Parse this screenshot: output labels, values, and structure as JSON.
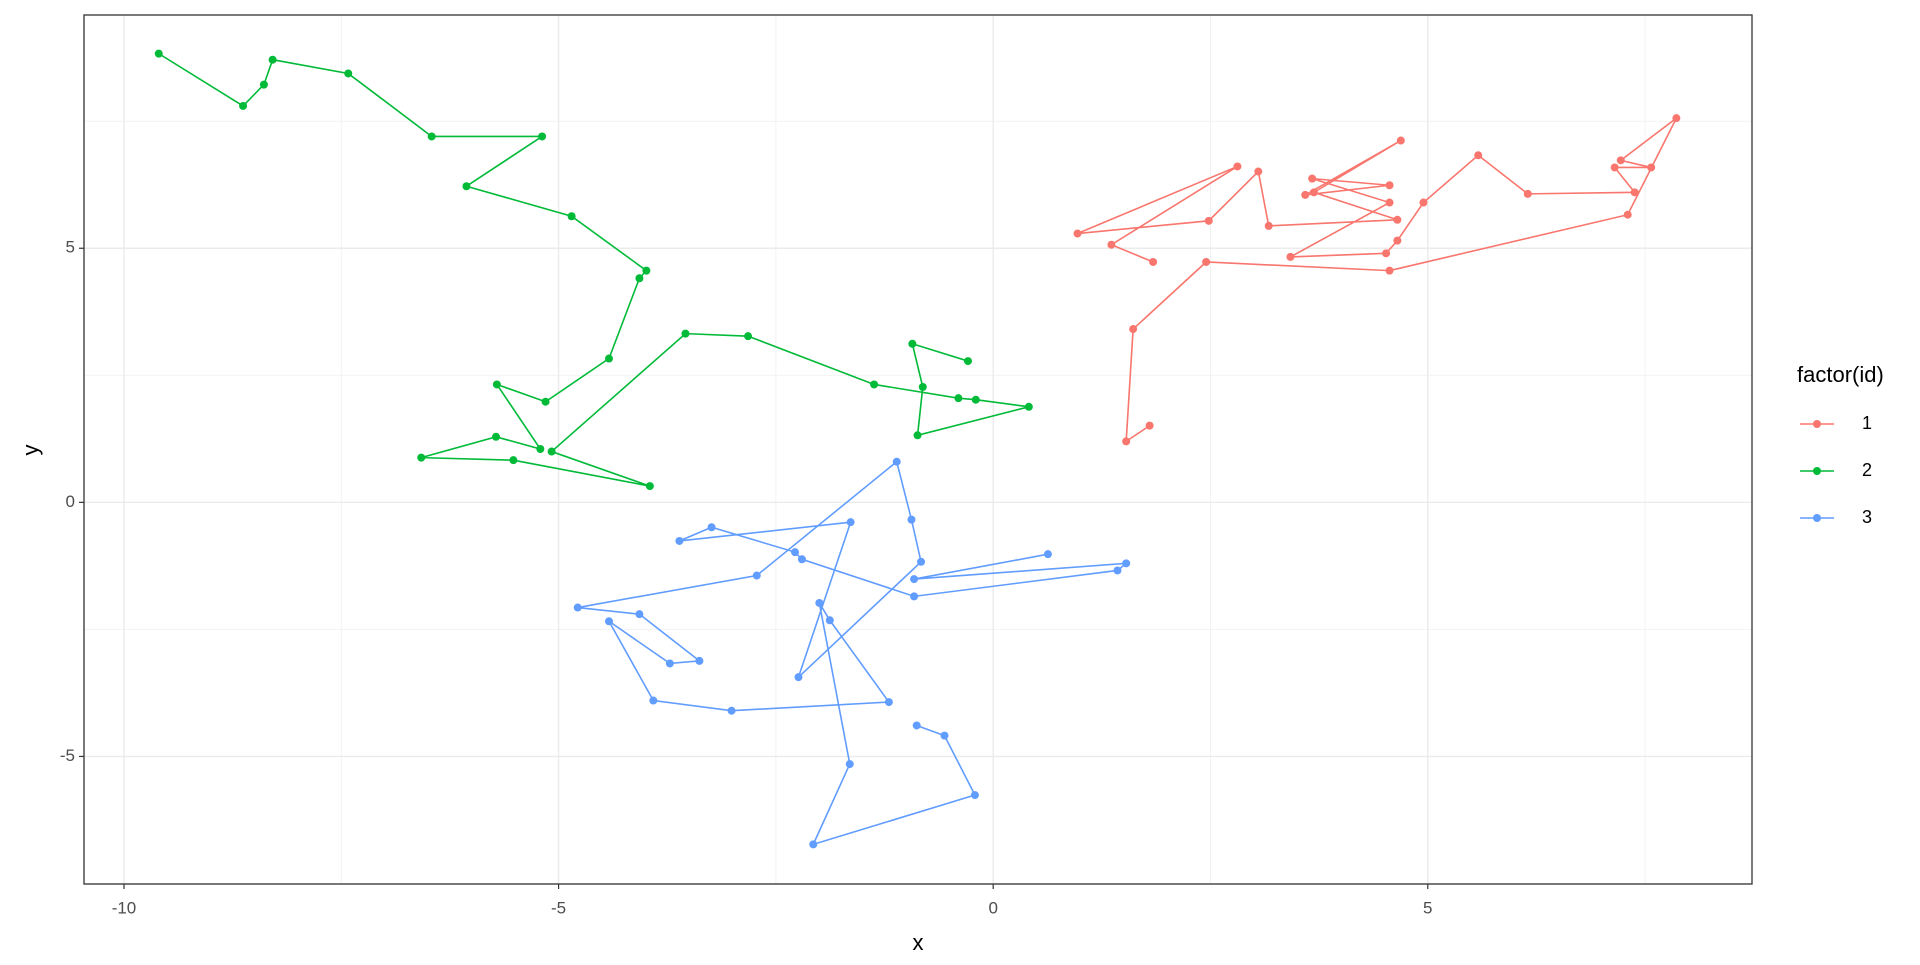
{
  "chart_data": {
    "type": "line",
    "x_label": "x",
    "y_label": "y",
    "legend_title": "factor(id)",
    "legend_position": "right",
    "grid": true,
    "xlim": [
      -10.46,
      8.73
    ],
    "ylim": [
      -7.51,
      9.59
    ],
    "xticks": [
      -10,
      -5,
      0,
      5
    ],
    "yticks": [
      -5,
      0,
      5
    ],
    "series": [
      {
        "name": "1",
        "color": "#F8766D",
        "x": [
          1.8,
          1.53,
          1.61,
          2.45,
          4.56,
          7.3,
          7.86,
          7.22,
          7.57,
          7.15,
          7.38,
          6.15,
          5.58,
          4.95,
          4.65,
          4.52,
          3.42,
          4.56,
          3.67,
          4.56,
          3.59,
          4.69,
          3.69,
          4.65,
          3.17,
          3.05,
          2.48,
          0.97,
          2.81,
          1.36,
          1.84
        ],
        "values": [
          1.51,
          1.2,
          3.41,
          4.73,
          4.56,
          5.66,
          7.56,
          6.73,
          6.59,
          6.59,
          6.1,
          6.07,
          6.83,
          5.9,
          5.15,
          4.9,
          4.83,
          5.9,
          6.37,
          6.24,
          6.05,
          7.12,
          6.1,
          5.56,
          5.44,
          6.51,
          5.54,
          5.29,
          6.61,
          5.07,
          4.73
        ]
      },
      {
        "name": "2",
        "color": "#00BA38",
        "x": [
          -9.6,
          -8.63,
          -8.39,
          -8.29,
          -7.42,
          -6.46,
          -5.19,
          -6.06,
          -4.85,
          -3.99,
          -4.07,
          -4.42,
          -5.15,
          -5.71,
          -5.21,
          -5.72,
          -6.58,
          -5.52,
          -3.95,
          -5.08,
          -3.54,
          -2.82,
          -1.37,
          -0.4,
          -0.2,
          0.41,
          -0.87,
          -0.81,
          -0.93,
          -0.29
        ],
        "values": [
          8.83,
          7.8,
          8.22,
          8.71,
          8.44,
          7.2,
          7.2,
          6.22,
          5.63,
          4.56,
          4.41,
          2.83,
          1.98,
          2.32,
          1.05,
          1.29,
          0.88,
          0.83,
          0.32,
          1.0,
          3.32,
          3.27,
          2.32,
          2.05,
          2.02,
          1.88,
          1.32,
          2.27,
          3.12,
          2.78
        ]
      },
      {
        "name": "3",
        "color": "#619CFF",
        "x": [
          -0.88,
          -0.56,
          -0.21,
          -2.07,
          -1.65,
          -2.0,
          -1.88,
          -1.2,
          -3.01,
          -3.91,
          -4.42,
          -3.72,
          -3.38,
          -4.07,
          -4.78,
          -2.72,
          -1.11,
          -0.94,
          -0.83,
          -2.24,
          -1.64,
          -3.61,
          -3.24,
          -2.28,
          -2.2,
          -0.91,
          1.43,
          1.53,
          -0.91,
          0.63
        ],
        "values": [
          -4.39,
          -4.59,
          -5.76,
          -6.73,
          -5.15,
          -1.98,
          -2.32,
          -3.93,
          -4.1,
          -3.9,
          -2.34,
          -3.17,
          -3.12,
          -2.2,
          -2.07,
          -1.44,
          0.8,
          -0.34,
          -1.17,
          -3.44,
          -0.39,
          -0.76,
          -0.49,
          -0.98,
          -1.12,
          -1.85,
          -1.34,
          -1.2,
          -1.51,
          -1.02
        ]
      }
    ]
  }
}
